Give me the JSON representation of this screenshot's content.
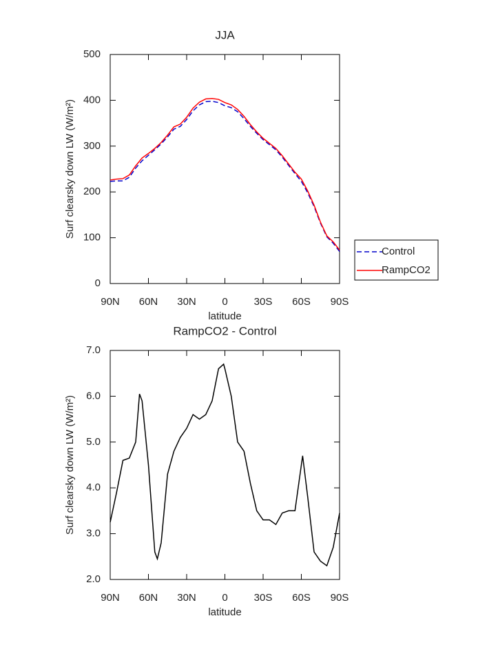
{
  "chart_data": [
    {
      "type": "line",
      "title": "JJA",
      "xlabel": "latitude",
      "ylabel": "Surf clearsky down LW (W/m²)",
      "x": [
        90,
        85,
        80,
        75,
        70,
        65,
        60,
        55,
        50,
        45,
        40,
        35,
        30,
        25,
        20,
        15,
        10,
        5,
        0,
        -5,
        -10,
        -15,
        -20,
        -25,
        -30,
        -35,
        -40,
        -45,
        -50,
        -55,
        -60,
        -65,
        -70,
        -75,
        -80,
        -85,
        -90
      ],
      "series": [
        {
          "name": "Control",
          "color": "#0000cc",
          "dash": true,
          "values": [
            223,
            224,
            224,
            232,
            252,
            268,
            280,
            292,
            305,
            320,
            337,
            343,
            358,
            377,
            390,
            397,
            398,
            395,
            388,
            384,
            375,
            360,
            343,
            328,
            314,
            303,
            292,
            276,
            258,
            240,
            223,
            198,
            168,
            132,
            102,
            88,
            70
          ]
        },
        {
          "name": "RampCO2",
          "color": "#ff0000",
          "dash": false,
          "values": [
            226,
            228,
            229,
            237,
            257,
            274,
            284,
            295,
            308,
            324,
            342,
            348,
            363,
            383,
            396,
            403,
            404,
            402,
            395,
            390,
            380,
            365,
            347,
            331,
            317,
            306,
            295,
            279,
            261,
            243,
            228,
            202,
            171,
            134,
            104,
            91,
            73
          ]
        }
      ],
      "xlim": [
        90,
        -90
      ],
      "xticks": [
        {
          "value": 90,
          "label": "90N"
        },
        {
          "value": 60,
          "label": "60N"
        },
        {
          "value": 30,
          "label": "30N"
        },
        0,
        {
          "value": -30,
          "label": "30S"
        },
        {
          "value": -60,
          "label": "60S"
        },
        {
          "value": -90,
          "label": "90S"
        }
      ],
      "ylim": [
        0,
        500
      ],
      "yticks": [
        0,
        100,
        200,
        300,
        400,
        500
      ],
      "legend": "outside-right"
    },
    {
      "type": "line",
      "title": "RampCO2 - Control",
      "xlabel": "latitude",
      "ylabel": "Surf clearsky down LW (W/m²)",
      "x": [
        90,
        85,
        80,
        75,
        70,
        67,
        65,
        60,
        55,
        53,
        50,
        45,
        40,
        35,
        30,
        25,
        20,
        15,
        10,
        5,
        1,
        0,
        -5,
        -10,
        -15,
        -20,
        -25,
        -30,
        -35,
        -40,
        -45,
        -50,
        -55,
        -61,
        -65,
        -70,
        -75,
        -80,
        -85,
        -90
      ],
      "series": [
        {
          "name": "RampCO2 - Control",
          "color": "#000000",
          "dash": false,
          "values": [
            3.25,
            3.9,
            4.6,
            4.65,
            5.0,
            6.05,
            5.9,
            4.5,
            2.6,
            2.45,
            2.8,
            4.3,
            4.8,
            5.1,
            5.3,
            5.6,
            5.5,
            5.6,
            5.9,
            6.6,
            6.7,
            6.6,
            6.0,
            5.0,
            4.8,
            4.1,
            3.5,
            3.3,
            3.3,
            3.2,
            3.45,
            3.5,
            3.5,
            4.7,
            3.8,
            2.6,
            2.4,
            2.3,
            2.7,
            3.45
          ]
        }
      ],
      "xlim": [
        90,
        -90
      ],
      "xticks": [
        {
          "value": 90,
          "label": "90N"
        },
        {
          "value": 60,
          "label": "60N"
        },
        {
          "value": 30,
          "label": "30N"
        },
        0,
        {
          "value": -30,
          "label": "30S"
        },
        {
          "value": -60,
          "label": "60S"
        },
        {
          "value": -90,
          "label": "90S"
        }
      ],
      "ylim": [
        2,
        7
      ],
      "yticks": [
        {
          "value": 2,
          "label": "2.0"
        },
        {
          "value": 3,
          "label": "3.0"
        },
        {
          "value": 4,
          "label": "4.0"
        },
        {
          "value": 5,
          "label": "5.0"
        },
        {
          "value": 6,
          "label": "6.0"
        },
        {
          "value": 7,
          "label": "7.0"
        }
      ]
    }
  ]
}
